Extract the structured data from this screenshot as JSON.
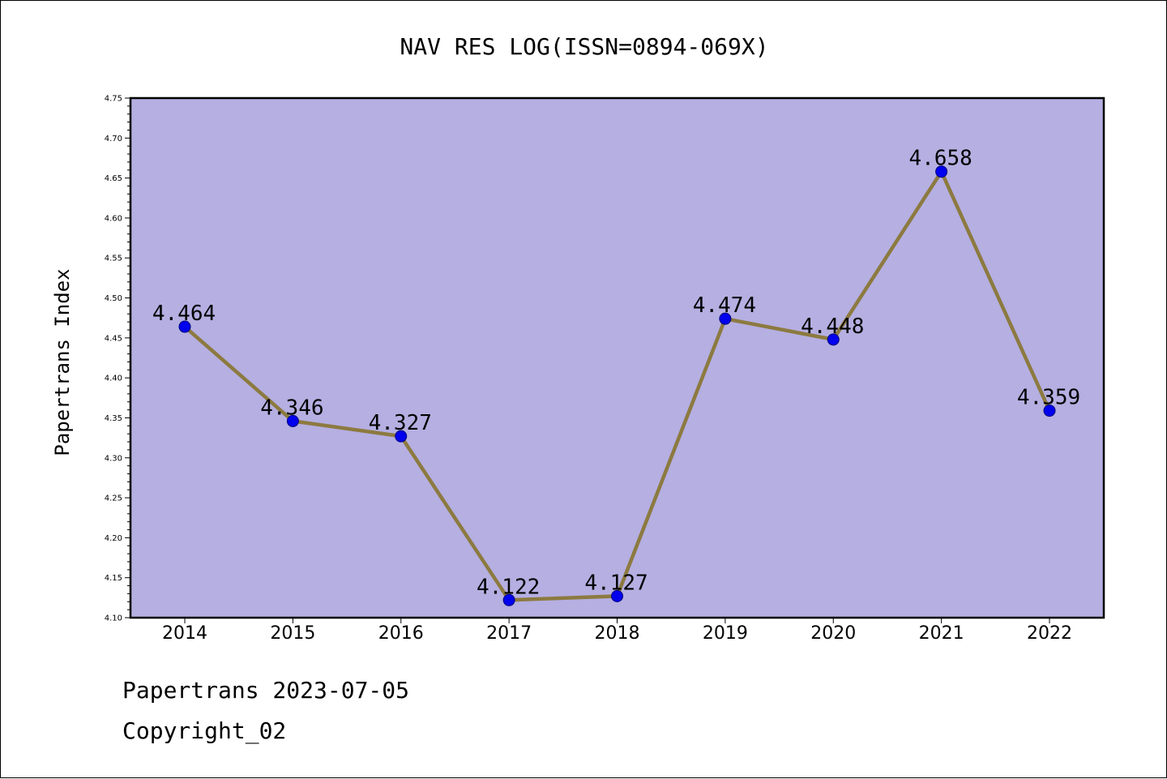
{
  "chart_data": {
    "type": "line",
    "title": "NAV RES LOG(ISSN=0894-069X)",
    "xlabel": "",
    "ylabel": "Papertrans Index",
    "categories": [
      "2014",
      "2015",
      "2016",
      "2017",
      "2018",
      "2019",
      "2020",
      "2021",
      "2022"
    ],
    "series": [
      {
        "values": [
          4.464,
          4.346,
          4.327,
          4.122,
          4.127,
          4.474,
          4.448,
          4.658,
          4.359
        ],
        "labels": [
          "4.464",
          "4.346",
          "4.327",
          "4.122",
          "4.127",
          "4.474",
          "4.448",
          "4.658",
          "4.359"
        ]
      }
    ],
    "ylim": [
      4.1,
      4.75
    ],
    "yticks": [
      "4.10",
      "4.15",
      "4.20",
      "4.25",
      "4.30",
      "4.35",
      "4.40",
      "4.45",
      "4.50",
      "4.55",
      "4.60",
      "4.65",
      "4.70",
      "4.75"
    ],
    "grid": false,
    "legend": "none",
    "colors": {
      "plot_background": "#b5afe2",
      "line": "#8c7a40",
      "marker_fill": "#0000ee",
      "marker_edge": "#00007a",
      "axis": "#000000"
    }
  },
  "footer": {
    "date_line": "Papertrans 2023-07-05",
    "copyright_line": "Copyright_02"
  }
}
